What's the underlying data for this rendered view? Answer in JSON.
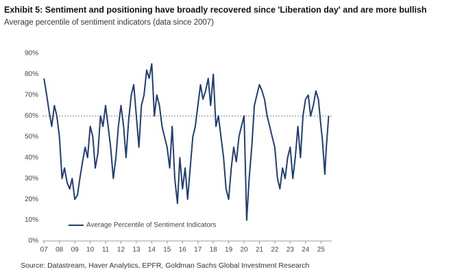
{
  "chart_data": {
    "type": "line",
    "title": "Exhibit 5: Sentiment and positioning have broadly recovered since 'Liberation day' and are more bullish",
    "subtitle": "Average percentile of sentiment indicators (data since 2007)",
    "source": "Source: Datastream, Haver Analytics, EPFR, Goldman Sachs Global Investment Research",
    "x": [
      2007,
      2007.17,
      2007.33,
      2007.5,
      2007.67,
      2007.83,
      2008,
      2008.17,
      2008.33,
      2008.5,
      2008.67,
      2008.83,
      2009,
      2009.17,
      2009.33,
      2009.5,
      2009.67,
      2009.83,
      2010,
      2010.17,
      2010.33,
      2010.5,
      2010.67,
      2010.83,
      2011,
      2011.17,
      2011.33,
      2011.5,
      2011.67,
      2011.83,
      2012,
      2012.17,
      2012.33,
      2012.5,
      2012.67,
      2012.83,
      2013,
      2013.17,
      2013.33,
      2013.5,
      2013.67,
      2013.83,
      2014,
      2014.17,
      2014.33,
      2014.5,
      2014.67,
      2014.83,
      2015,
      2015.17,
      2015.33,
      2015.5,
      2015.67,
      2015.83,
      2016,
      2016.17,
      2016.33,
      2016.5,
      2016.67,
      2016.83,
      2017,
      2017.17,
      2017.33,
      2017.5,
      2017.67,
      2017.83,
      2018,
      2018.17,
      2018.33,
      2018.5,
      2018.67,
      2018.83,
      2019,
      2019.17,
      2019.33,
      2019.5,
      2019.67,
      2019.83,
      2020,
      2020.17,
      2020.33,
      2020.5,
      2020.67,
      2020.83,
      2021,
      2021.17,
      2021.33,
      2021.5,
      2021.67,
      2021.83,
      2022,
      2022.17,
      2022.33,
      2022.5,
      2022.67,
      2022.83,
      2023,
      2023.17,
      2023.33,
      2023.5,
      2023.67,
      2023.83,
      2024,
      2024.17,
      2024.33,
      2024.5,
      2024.67,
      2024.83,
      2025,
      2025.1,
      2025.25,
      2025.35,
      2025.5
    ],
    "series": [
      {
        "name": "Average Percentile of Sentiment Indicators",
        "color": "#1f3e78",
        "values": [
          78,
          70,
          62,
          55,
          65,
          60,
          50,
          30,
          35,
          28,
          25,
          30,
          20,
          22,
          30,
          38,
          45,
          40,
          55,
          50,
          35,
          42,
          60,
          55,
          65,
          55,
          45,
          30,
          40,
          55,
          65,
          55,
          40,
          58,
          70,
          75,
          60,
          45,
          65,
          70,
          82,
          78,
          85,
          60,
          70,
          65,
          55,
          50,
          45,
          35,
          55,
          30,
          18,
          40,
          25,
          35,
          20,
          35,
          50,
          55,
          65,
          75,
          68,
          72,
          78,
          65,
          80,
          55,
          60,
          50,
          40,
          25,
          20,
          35,
          45,
          38,
          50,
          55,
          60,
          10,
          30,
          45,
          65,
          70,
          75,
          72,
          68,
          60,
          55,
          50,
          45,
          30,
          25,
          35,
          30,
          40,
          45,
          30,
          40,
          55,
          40,
          60,
          68,
          70,
          60,
          65,
          72,
          68,
          55,
          48,
          32,
          45,
          60
        ]
      }
    ],
    "reference_line": 60,
    "xlim": [
      2006.9,
      2025.7
    ],
    "xticks": [
      {
        "value": 2007,
        "label": "07"
      },
      {
        "value": 2008,
        "label": "08"
      },
      {
        "value": 2009,
        "label": "09"
      },
      {
        "value": 2010,
        "label": "10"
      },
      {
        "value": 2011,
        "label": "11"
      },
      {
        "value": 2012,
        "label": "12"
      },
      {
        "value": 2013,
        "label": "13"
      },
      {
        "value": 2014,
        "label": "14"
      },
      {
        "value": 2015,
        "label": "15"
      },
      {
        "value": 2016,
        "label": "16"
      },
      {
        "value": 2017,
        "label": "17"
      },
      {
        "value": 2018,
        "label": "18"
      },
      {
        "value": 2019,
        "label": "19"
      },
      {
        "value": 2020,
        "label": "20"
      },
      {
        "value": 2021,
        "label": "21"
      },
      {
        "value": 2022,
        "label": "22"
      },
      {
        "value": 2023,
        "label": "23"
      },
      {
        "value": 2024,
        "label": "24"
      },
      {
        "value": 2025,
        "label": "25"
      }
    ],
    "ylim": [
      0,
      90
    ],
    "yticks": [
      {
        "value": 0,
        "label": "0%"
      },
      {
        "value": 10,
        "label": "10%"
      },
      {
        "value": 20,
        "label": "20%"
      },
      {
        "value": 30,
        "label": "30%"
      },
      {
        "value": 40,
        "label": "40%"
      },
      {
        "value": 50,
        "label": "50%"
      },
      {
        "value": 60,
        "label": "60%"
      },
      {
        "value": 70,
        "label": "70%"
      },
      {
        "value": 80,
        "label": "80%"
      },
      {
        "value": 90,
        "label": "90%"
      }
    ],
    "grid": false,
    "legend": "lower left"
  }
}
